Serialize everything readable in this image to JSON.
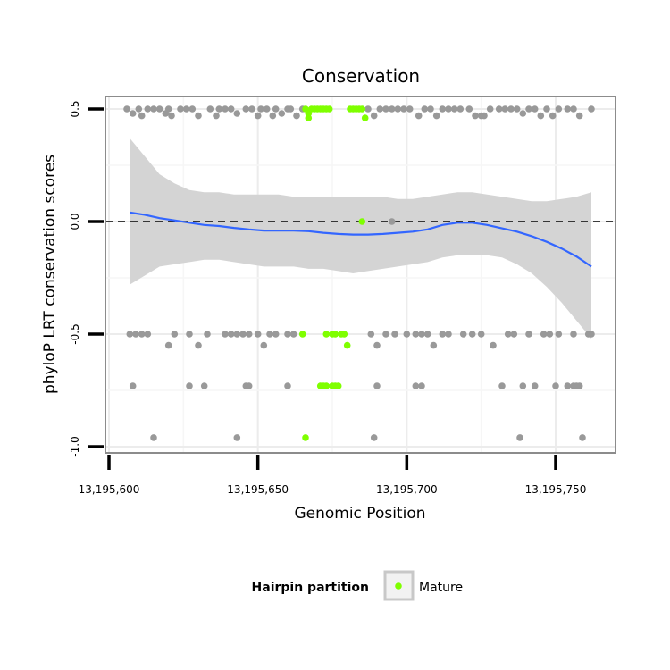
{
  "chart_data": {
    "type": "scatter",
    "title": "Conservation",
    "xlabel": "Genomic Position",
    "ylabel": "phyloP LRT conservation scores",
    "xlim": [
      13195600,
      13195770
    ],
    "ylim": [
      -1.0,
      0.5
    ],
    "x_ticks": [
      13195600,
      13195650,
      13195700,
      13195750
    ],
    "x_tick_labels": [
      "13,195,600",
      "13,195,650",
      "13,195,700",
      "13,195,750"
    ],
    "y_ticks": [
      -1.0,
      -0.5,
      0.0,
      0.5
    ],
    "y_tick_labels": [
      "-1.0",
      "-0.5",
      "0.0",
      "0.5"
    ],
    "reference_line": {
      "y": 0,
      "style": "dashed",
      "color": "#000000"
    },
    "legend": {
      "title": "Hairpin partition",
      "entries": [
        {
          "label": "Mature",
          "color": "#7fff00"
        }
      ]
    },
    "colors": {
      "other": "#999999",
      "mature": "#7fff00",
      "smooth": "#3366ff",
      "ribbon": "#d4d4d4",
      "panel_border": "#8c8c8c"
    },
    "series": [
      {
        "name": "Other",
        "points": [
          [
            13195606,
            0.5
          ],
          [
            13195608,
            0.48
          ],
          [
            13195610,
            0.5
          ],
          [
            13195611,
            0.47
          ],
          [
            13195613,
            0.5
          ],
          [
            13195615,
            0.5
          ],
          [
            13195617,
            0.5
          ],
          [
            13195619,
            0.48
          ],
          [
            13195620,
            0.5
          ],
          [
            13195621,
            0.47
          ],
          [
            13195624,
            0.5
          ],
          [
            13195626,
            0.5
          ],
          [
            13195628,
            0.5
          ],
          [
            13195630,
            0.47
          ],
          [
            13195634,
            0.5
          ],
          [
            13195636,
            0.47
          ],
          [
            13195637,
            0.5
          ],
          [
            13195639,
            0.5
          ],
          [
            13195641,
            0.5
          ],
          [
            13195643,
            0.48
          ],
          [
            13195646,
            0.5
          ],
          [
            13195648,
            0.5
          ],
          [
            13195650,
            0.47
          ],
          [
            13195651,
            0.5
          ],
          [
            13195653,
            0.5
          ],
          [
            13195655,
            0.47
          ],
          [
            13195656,
            0.5
          ],
          [
            13195658,
            0.48
          ],
          [
            13195660,
            0.5
          ],
          [
            13195661,
            0.5
          ],
          [
            13195663,
            0.47
          ],
          [
            13195665,
            0.5
          ],
          [
            13195687,
            0.5
          ],
          [
            13195689,
            0.47
          ],
          [
            13195691,
            0.5
          ],
          [
            13195693,
            0.5
          ],
          [
            13195695,
            0.5
          ],
          [
            13195697,
            0.5
          ],
          [
            13195699,
            0.5
          ],
          [
            13195701,
            0.5
          ],
          [
            13195704,
            0.47
          ],
          [
            13195706,
            0.5
          ],
          [
            13195708,
            0.5
          ],
          [
            13195710,
            0.47
          ],
          [
            13195712,
            0.5
          ],
          [
            13195714,
            0.5
          ],
          [
            13195716,
            0.5
          ],
          [
            13195718,
            0.5
          ],
          [
            13195721,
            0.5
          ],
          [
            13195723,
            0.47
          ],
          [
            13195725,
            0.47
          ],
          [
            13195726,
            0.47
          ],
          [
            13195728,
            0.5
          ],
          [
            13195731,
            0.5
          ],
          [
            13195733,
            0.5
          ],
          [
            13195735,
            0.5
          ],
          [
            13195737,
            0.5
          ],
          [
            13195739,
            0.48
          ],
          [
            13195741,
            0.5
          ],
          [
            13195743,
            0.5
          ],
          [
            13195745,
            0.47
          ],
          [
            13195747,
            0.5
          ],
          [
            13195749,
            0.47
          ],
          [
            13195751,
            0.5
          ],
          [
            13195754,
            0.5
          ],
          [
            13195756,
            0.5
          ],
          [
            13195758,
            0.47
          ],
          [
            13195762,
            0.5
          ],
          [
            13195695,
            0.0
          ],
          [
            13195607,
            -0.5
          ],
          [
            13195609,
            -0.5
          ],
          [
            13195611,
            -0.5
          ],
          [
            13195613,
            -0.5
          ],
          [
            13195620,
            -0.55
          ],
          [
            13195622,
            -0.5
          ],
          [
            13195627,
            -0.5
          ],
          [
            13195630,
            -0.55
          ],
          [
            13195633,
            -0.5
          ],
          [
            13195639,
            -0.5
          ],
          [
            13195641,
            -0.5
          ],
          [
            13195643,
            -0.5
          ],
          [
            13195645,
            -0.5
          ],
          [
            13195647,
            -0.5
          ],
          [
            13195650,
            -0.5
          ],
          [
            13195652,
            -0.55
          ],
          [
            13195654,
            -0.5
          ],
          [
            13195656,
            -0.5
          ],
          [
            13195660,
            -0.5
          ],
          [
            13195662,
            -0.5
          ],
          [
            13195688,
            -0.5
          ],
          [
            13195690,
            -0.55
          ],
          [
            13195693,
            -0.5
          ],
          [
            13195696,
            -0.5
          ],
          [
            13195700,
            -0.5
          ],
          [
            13195703,
            -0.5
          ],
          [
            13195705,
            -0.5
          ],
          [
            13195707,
            -0.5
          ],
          [
            13195709,
            -0.55
          ],
          [
            13195712,
            -0.5
          ],
          [
            13195714,
            -0.5
          ],
          [
            13195719,
            -0.5
          ],
          [
            13195722,
            -0.5
          ],
          [
            13195725,
            -0.5
          ],
          [
            13195729,
            -0.55
          ],
          [
            13195734,
            -0.5
          ],
          [
            13195736,
            -0.5
          ],
          [
            13195741,
            -0.5
          ],
          [
            13195746,
            -0.5
          ],
          [
            13195748,
            -0.5
          ],
          [
            13195751,
            -0.5
          ],
          [
            13195756,
            -0.5
          ],
          [
            13195761,
            -0.5
          ],
          [
            13195762,
            -0.5
          ],
          [
            13195608,
            -0.73
          ],
          [
            13195627,
            -0.73
          ],
          [
            13195632,
            -0.73
          ],
          [
            13195646,
            -0.73
          ],
          [
            13195647,
            -0.73
          ],
          [
            13195660,
            -0.73
          ],
          [
            13195690,
            -0.73
          ],
          [
            13195703,
            -0.73
          ],
          [
            13195705,
            -0.73
          ],
          [
            13195732,
            -0.73
          ],
          [
            13195739,
            -0.73
          ],
          [
            13195743,
            -0.73
          ],
          [
            13195750,
            -0.73
          ],
          [
            13195754,
            -0.73
          ],
          [
            13195756,
            -0.73
          ],
          [
            13195757,
            -0.73
          ],
          [
            13195758,
            -0.73
          ],
          [
            13195615,
            -0.96
          ],
          [
            13195643,
            -0.96
          ],
          [
            13195689,
            -0.96
          ],
          [
            13195738,
            -0.96
          ],
          [
            13195759,
            -0.96
          ]
        ]
      },
      {
        "name": "Mature",
        "points": [
          [
            13195666,
            0.5
          ],
          [
            13195667,
            0.48
          ],
          [
            13195668,
            0.5
          ],
          [
            13195669,
            0.5
          ],
          [
            13195670,
            0.5
          ],
          [
            13195671,
            0.5
          ],
          [
            13195672,
            0.5
          ],
          [
            13195673,
            0.5
          ],
          [
            13195674,
            0.5
          ],
          [
            13195667,
            0.46
          ],
          [
            13195681,
            0.5
          ],
          [
            13195682,
            0.5
          ],
          [
            13195683,
            0.5
          ],
          [
            13195684,
            0.5
          ],
          [
            13195685,
            0.5
          ],
          [
            13195686,
            0.46
          ],
          [
            13195685,
            0.0
          ],
          [
            13195665,
            -0.5
          ],
          [
            13195673,
            -0.5
          ],
          [
            13195675,
            -0.5
          ],
          [
            13195676,
            -0.5
          ],
          [
            13195678,
            -0.5
          ],
          [
            13195679,
            -0.5
          ],
          [
            13195680,
            -0.55
          ],
          [
            13195671,
            -0.73
          ],
          [
            13195672,
            -0.73
          ],
          [
            13195673,
            -0.73
          ],
          [
            13195675,
            -0.73
          ],
          [
            13195676,
            -0.73
          ],
          [
            13195677,
            -0.73
          ],
          [
            13195666,
            -0.96
          ]
        ]
      }
    ],
    "smooth": {
      "method": "loess",
      "x": [
        13195607,
        13195612,
        13195617,
        13195622,
        13195627,
        13195632,
        13195637,
        13195642,
        13195647,
        13195652,
        13195657,
        13195662,
        13195667,
        13195672,
        13195677,
        13195682,
        13195687,
        13195692,
        13195697,
        13195702,
        13195707,
        13195712,
        13195717,
        13195722,
        13195727,
        13195732,
        13195737,
        13195742,
        13195747,
        13195752,
        13195757,
        13195762
      ],
      "y": [
        0.04,
        0.03,
        0.015,
        0.005,
        -0.005,
        -0.015,
        -0.02,
        -0.028,
        -0.035,
        -0.04,
        -0.04,
        -0.04,
        -0.043,
        -0.05,
        -0.055,
        -0.058,
        -0.058,
        -0.055,
        -0.05,
        -0.045,
        -0.035,
        -0.015,
        -0.005,
        -0.005,
        -0.015,
        -0.03,
        -0.045,
        -0.065,
        -0.09,
        -0.12,
        -0.155,
        -0.2
      ],
      "lower": [
        -0.28,
        -0.24,
        -0.2,
        -0.19,
        -0.18,
        -0.17,
        -0.17,
        -0.18,
        -0.19,
        -0.2,
        -0.2,
        -0.2,
        -0.21,
        -0.21,
        -0.22,
        -0.23,
        -0.22,
        -0.21,
        -0.2,
        -0.19,
        -0.18,
        -0.16,
        -0.15,
        -0.15,
        -0.15,
        -0.16,
        -0.19,
        -0.23,
        -0.29,
        -0.36,
        -0.44,
        -0.52
      ],
      "upper": [
        0.37,
        0.29,
        0.21,
        0.17,
        0.14,
        0.13,
        0.13,
        0.12,
        0.12,
        0.12,
        0.12,
        0.11,
        0.11,
        0.11,
        0.11,
        0.11,
        0.11,
        0.11,
        0.1,
        0.1,
        0.11,
        0.12,
        0.13,
        0.13,
        0.12,
        0.11,
        0.1,
        0.09,
        0.09,
        0.1,
        0.11,
        0.13
      ]
    }
  }
}
